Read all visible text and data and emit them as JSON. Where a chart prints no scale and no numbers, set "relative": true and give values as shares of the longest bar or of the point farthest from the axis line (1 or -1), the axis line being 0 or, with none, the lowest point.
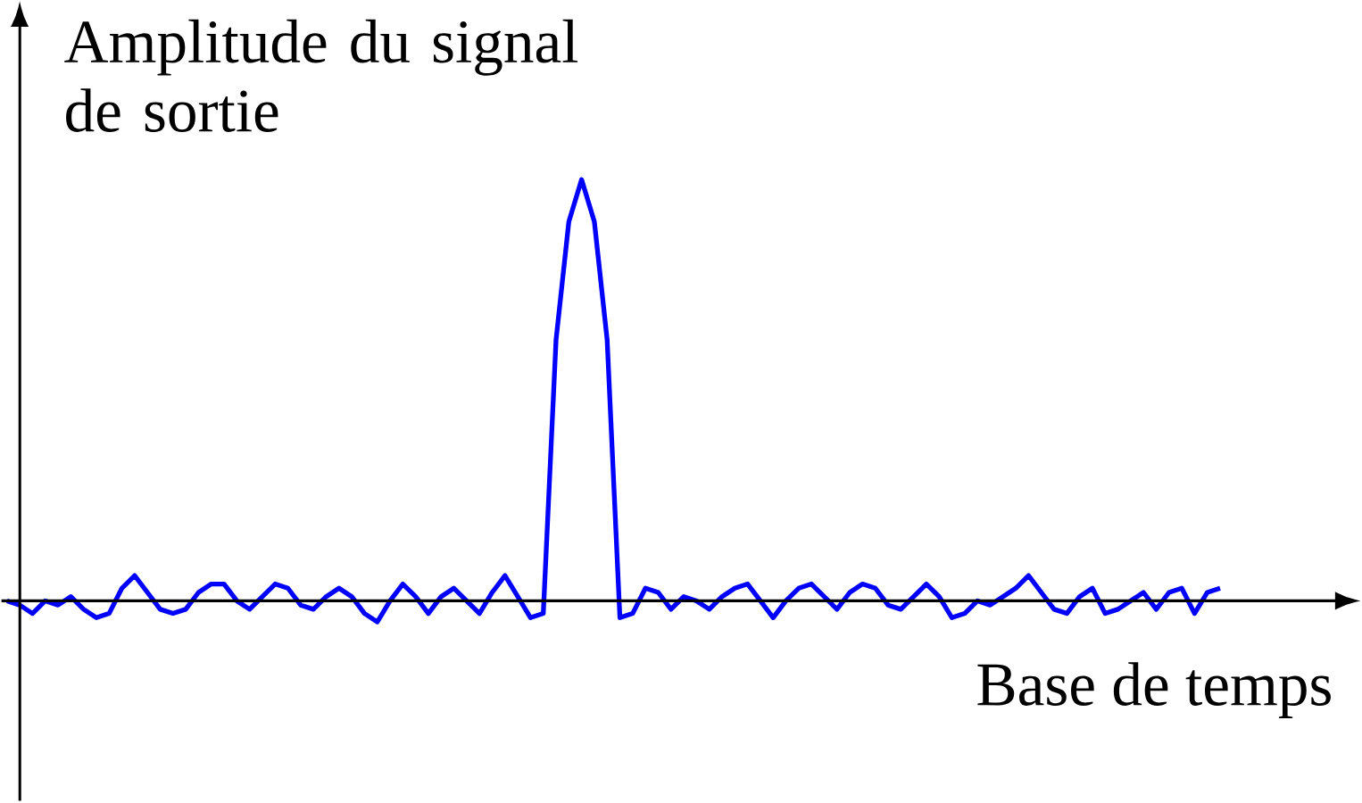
{
  "chart_data": {
    "type": "line",
    "relative": true,
    "xlabel": "Base de temps",
    "ylabel": "Amplitude du signal de sortie",
    "categories": [
      null,
      null,
      null,
      null,
      null,
      null,
      null,
      null,
      null,
      null,
      null,
      null,
      null,
      null,
      null,
      null,
      null,
      null,
      null,
      null,
      null,
      null,
      null,
      null,
      null,
      null,
      null,
      null,
      null,
      null,
      null,
      null,
      null,
      null,
      null,
      null,
      null,
      null,
      null,
      null,
      null,
      null,
      null,
      null,
      null,
      null,
      null,
      null,
      null,
      null,
      null,
      null,
      null,
      null,
      null,
      null,
      null,
      null,
      null,
      null,
      null,
      null,
      null,
      null,
      null,
      null,
      null,
      null,
      null,
      null,
      null,
      null,
      null,
      null,
      null,
      null,
      null,
      null,
      null,
      null,
      null,
      null,
      null,
      null,
      null,
      null,
      null,
      null,
      null,
      null,
      null,
      null,
      null,
      null,
      null,
      null
    ],
    "series": [
      {
        "color": "#0000ff",
        "values": [
          0.0,
          -0.01,
          -0.03,
          0.0,
          -0.01,
          0.01,
          -0.02,
          -0.04,
          -0.03,
          0.03,
          0.06,
          0.02,
          -0.02,
          -0.03,
          -0.02,
          0.02,
          0.04,
          0.04,
          0.0,
          -0.02,
          0.01,
          0.04,
          0.03,
          -0.01,
          -0.02,
          0.01,
          0.03,
          0.01,
          -0.03,
          -0.05,
          0.0,
          0.04,
          0.01,
          -0.03,
          0.01,
          0.03,
          0.0,
          -0.03,
          0.02,
          0.06,
          0.01,
          -0.04,
          -0.03,
          0.62,
          0.9,
          1.0,
          0.9,
          0.62,
          -0.04,
          -0.03,
          0.03,
          0.02,
          -0.02,
          0.01,
          0.0,
          -0.02,
          0.01,
          0.03,
          0.04,
          0.0,
          -0.04,
          0.0,
          0.03,
          0.04,
          0.01,
          -0.02,
          0.02,
          0.04,
          0.03,
          -0.01,
          -0.02,
          0.01,
          0.04,
          0.01,
          -0.04,
          -0.03,
          0.0,
          -0.01,
          0.01,
          0.03,
          0.06,
          0.02,
          -0.02,
          -0.03,
          0.01,
          0.03,
          -0.03,
          -0.02,
          0.0,
          0.02,
          -0.02,
          0.02,
          0.03,
          -0.03,
          0.02,
          0.03
        ]
      }
    ]
  }
}
